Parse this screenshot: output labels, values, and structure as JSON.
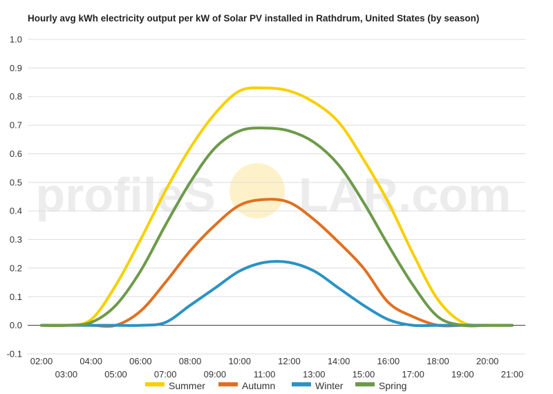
{
  "chart_data": {
    "type": "line",
    "title": "Hourly avg kWh electricity output per kW of Solar PV installed in Rathdrum, United States (by season)",
    "watermark_left": "profileS",
    "watermark_right": "LAR.com",
    "x": [
      "02:00",
      "03:00",
      "04:00",
      "05:00",
      "06:00",
      "07:00",
      "08:00",
      "09:00",
      "10:00",
      "11:00",
      "12:00",
      "13:00",
      "14:00",
      "15:00",
      "16:00",
      "17:00",
      "18:00",
      "19:00",
      "20:00",
      "21:00"
    ],
    "ylim": [
      -0.1,
      1.0
    ],
    "yticks": [
      "-0.1",
      "0.0",
      "0.1",
      "0.2",
      "0.3",
      "0.4",
      "0.5",
      "0.6",
      "0.7",
      "0.8",
      "0.9",
      "1.0"
    ],
    "grid": true,
    "legend_position": "bottom",
    "series": [
      {
        "name": "Summer",
        "color": "#f7d000",
        "values": [
          0.0,
          0.0,
          0.02,
          0.14,
          0.3,
          0.47,
          0.62,
          0.74,
          0.82,
          0.83,
          0.82,
          0.78,
          0.71,
          0.58,
          0.43,
          0.25,
          0.09,
          0.01,
          0.0,
          0.0
        ]
      },
      {
        "name": "Autumn",
        "color": "#e07020",
        "values": [
          0.0,
          0.0,
          0.0,
          0.0,
          0.05,
          0.15,
          0.26,
          0.35,
          0.42,
          0.44,
          0.43,
          0.37,
          0.29,
          0.2,
          0.08,
          0.03,
          0.0,
          0.0,
          0.0,
          0.0
        ]
      },
      {
        "name": "Winter",
        "color": "#2a93c4",
        "values": [
          0.0,
          0.0,
          0.0,
          0.0,
          0.0,
          0.01,
          0.07,
          0.13,
          0.19,
          0.22,
          0.22,
          0.19,
          0.13,
          0.07,
          0.02,
          0.0,
          0.0,
          0.0,
          0.0,
          0.0
        ]
      },
      {
        "name": "Spring",
        "color": "#6d9a4a",
        "values": [
          0.0,
          0.0,
          0.01,
          0.07,
          0.19,
          0.35,
          0.5,
          0.62,
          0.68,
          0.69,
          0.68,
          0.64,
          0.56,
          0.43,
          0.28,
          0.14,
          0.03,
          0.0,
          0.0,
          0.0
        ]
      }
    ]
  }
}
